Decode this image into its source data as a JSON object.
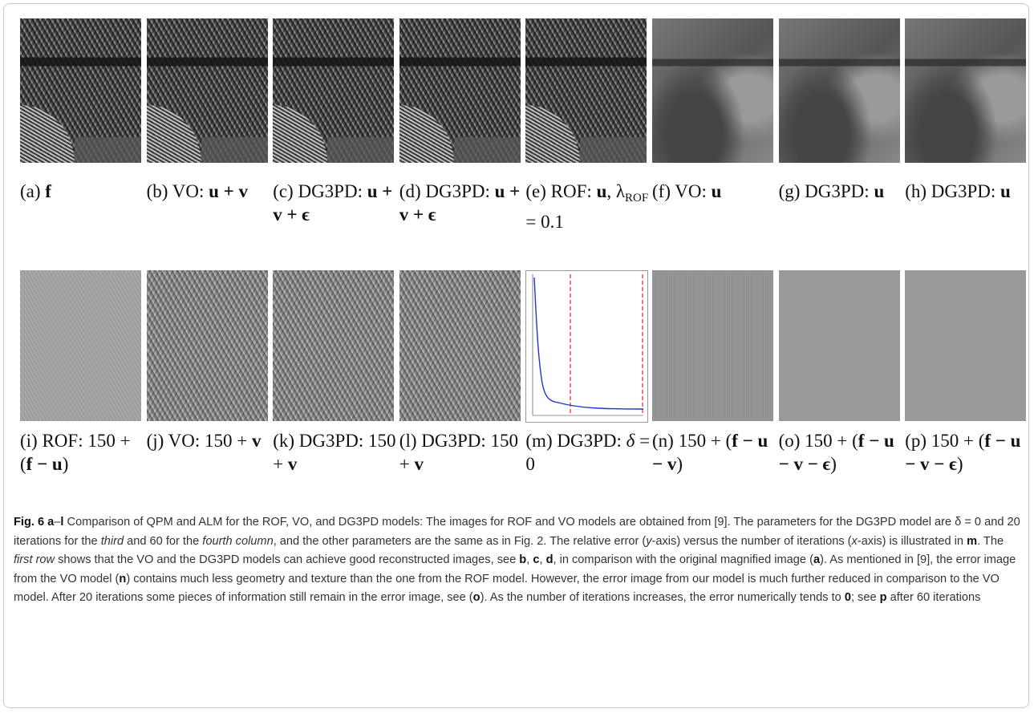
{
  "figure": {
    "panels": [
      {
        "label": [
          {
            "text": "(a) "
          },
          {
            "text": "f",
            "bold": true
          }
        ]
      },
      {
        "label": [
          {
            "text": "(b) VO: "
          },
          {
            "text": "u + v",
            "bold": true
          }
        ]
      },
      {
        "label": [
          {
            "text": "(c) DG3PD: "
          },
          {
            "text": "u + v + ϵ",
            "bold": true
          }
        ]
      },
      {
        "label": [
          {
            "text": "(d) DG3PD: "
          },
          {
            "text": "u + v + ϵ",
            "bold": true
          }
        ]
      },
      {
        "label": [
          {
            "text": "(e) ROF: "
          },
          {
            "text": "u",
            "bold": true
          },
          {
            "text": ", λ"
          },
          {
            "text": "ROF",
            "sub": true
          },
          {
            "text": " = 0.1"
          }
        ]
      },
      {
        "label": [
          {
            "text": "(f) VO: "
          },
          {
            "text": "u",
            "bold": true
          }
        ]
      },
      {
        "label": [
          {
            "text": "(g) DG3PD: "
          },
          {
            "text": "u",
            "bold": true
          }
        ]
      },
      {
        "label": [
          {
            "text": "(h) DG3PD: "
          },
          {
            "text": "u",
            "bold": true
          }
        ]
      },
      {
        "label": [
          {
            "text": "(i) ROF: 150 + ("
          },
          {
            "text": "f − u",
            "bold": true
          },
          {
            "text": ")"
          }
        ]
      },
      {
        "label": [
          {
            "text": "(j) VO: 150 + "
          },
          {
            "text": "v",
            "bold": true
          }
        ]
      },
      {
        "label": [
          {
            "text": "(k) DG3PD: 150 + "
          },
          {
            "text": "v",
            "bold": true
          }
        ]
      },
      {
        "label": [
          {
            "text": "(l) DG3PD: 150 + "
          },
          {
            "text": "v",
            "bold": true
          }
        ]
      },
      {
        "label": [
          {
            "text": "(m) DG3PD: "
          },
          {
            "text": "δ",
            "italic": true
          },
          {
            "text": " = 0"
          }
        ]
      },
      {
        "label": [
          {
            "text": "(n) 150 + ("
          },
          {
            "text": "f − u − v",
            "bold": true
          },
          {
            "text": ")"
          }
        ]
      },
      {
        "label": [
          {
            "text": "(o) 150 + ("
          },
          {
            "text": "f − u − v − ϵ",
            "bold": true
          },
          {
            "text": ")"
          }
        ]
      },
      {
        "label": [
          {
            "text": "(p) 150 + ("
          },
          {
            "text": "f − u − v − ϵ",
            "bold": true
          },
          {
            "text": ")"
          }
        ]
      }
    ],
    "caption": [
      {
        "text": "Fig. 6 ",
        "bold": true
      },
      {
        "text": "a",
        "bold": true
      },
      {
        "text": "–"
      },
      {
        "text": "l",
        "bold": true
      },
      {
        "text": " Comparison of QPM and ALM for the ROF, VO, and DG3PD models: The images for ROF and VO models are obtained from [9]. The parameters for the DG3PD model are δ = 0 and 20 iterations for the "
      },
      {
        "text": "third",
        "italic": true
      },
      {
        "text": " and 60 for the "
      },
      {
        "text": "fourth column",
        "italic": true
      },
      {
        "text": ", and the other parameters are the same as in Fig. 2. The relative error ("
      },
      {
        "text": "y",
        "italic": true
      },
      {
        "text": "-axis) versus the number of iterations ("
      },
      {
        "text": "x",
        "italic": true
      },
      {
        "text": "-axis) is illustrated in "
      },
      {
        "text": "m",
        "bold": true
      },
      {
        "text": ". The "
      },
      {
        "text": "first row",
        "italic": true
      },
      {
        "text": " shows that the VO and the DG3PD models can achieve good reconstructed images, see "
      },
      {
        "text": "b",
        "bold": true
      },
      {
        "text": ", "
      },
      {
        "text": "c",
        "bold": true
      },
      {
        "text": ", "
      },
      {
        "text": "d",
        "bold": true
      },
      {
        "text": ", in comparison with the original magnified image ("
      },
      {
        "text": "a",
        "bold": true
      },
      {
        "text": "). As mentioned in [9], the error image from the VO model ("
      },
      {
        "text": "n",
        "bold": true
      },
      {
        "text": ") contains much less geometry and texture than the one from the ROF model. However, the error image from our model is much further reduced in comparison to the VO model. After 20 iterations some pieces of information still remain in the error image, see ("
      },
      {
        "text": "o",
        "bold": true
      },
      {
        "text": "). As the number of iterations increases, the error numerically tends to "
      },
      {
        "text": "0",
        "bold": true
      },
      {
        "text": "; see "
      },
      {
        "text": "p",
        "bold": true
      },
      {
        "text": " after 60 iterations"
      }
    ]
  }
}
